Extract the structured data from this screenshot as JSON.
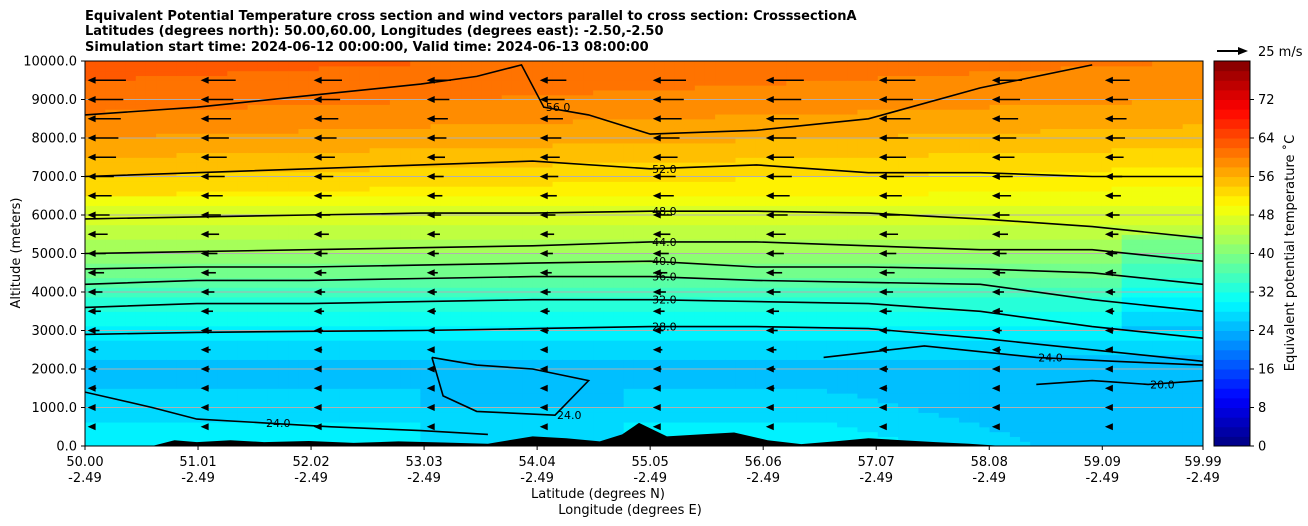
{
  "titles": [
    "Equivalent Potential Temperature cross section and wind vectors parallel to cross section: CrosssectionA",
    "Latitudes (degrees north): 50.00,60.00, Longitudes (degrees east): -2.50,-2.50",
    "Simulation start time: 2024-06-12 00:00:00, Valid time: 2024-06-13 08:00:00"
  ],
  "vector_key": "25 m/s",
  "chart_data": {
    "type": "heatmap",
    "title": "Equivalent Potential Temperature cross section and wind vectors parallel to cross section: CrosssectionA",
    "xlabel": "Latitude (degrees N)",
    "xlabel2": "Longitude (degrees E)",
    "ylabel": "Altitude (meters)",
    "colorbar_label": "Equivalent potential temperature $^\\circ$C",
    "colorbar_label_display": "Equivalent potential temperature ˚C",
    "ylim": [
      0,
      10000
    ],
    "xlim": [
      50.0,
      59.99
    ],
    "x_ticks": [
      {
        "lat": "50.00",
        "lon": "-2.49",
        "v": 50.0
      },
      {
        "lat": "51.01",
        "lon": "-2.49",
        "v": 51.01
      },
      {
        "lat": "52.02",
        "lon": "-2.49",
        "v": 52.02
      },
      {
        "lat": "53.03",
        "lon": "-2.49",
        "v": 53.03
      },
      {
        "lat": "54.04",
        "lon": "-2.49",
        "v": 54.04
      },
      {
        "lat": "55.05",
        "lon": "-2.49",
        "v": 55.05
      },
      {
        "lat": "56.06",
        "lon": "-2.49",
        "v": 56.06
      },
      {
        "lat": "57.07",
        "lon": "-2.49",
        "v": 57.07
      },
      {
        "lat": "58.08",
        "lon": "-2.49",
        "v": 58.08
      },
      {
        "lat": "59.09",
        "lon": "-2.49",
        "v": 59.09
      },
      {
        "lat": "59.99",
        "lon": "-2.49",
        "v": 59.99
      }
    ],
    "y_ticks": [
      "0.0",
      "1000.0",
      "2000.0",
      "3000.0",
      "4000.0",
      "5000.0",
      "6000.0",
      "7000.0",
      "8000.0",
      "9000.0",
      "10000.0"
    ],
    "y_tick_values": [
      0,
      1000,
      2000,
      3000,
      4000,
      5000,
      6000,
      7000,
      8000,
      9000,
      10000
    ],
    "colorbar_ticks": [
      "0",
      "8",
      "16",
      "24",
      "32",
      "40",
      "48",
      "56",
      "64",
      "72"
    ],
    "colorbar_range": [
      0,
      80
    ],
    "grid": true,
    "contour_levels": [
      20,
      24,
      28,
      32,
      36,
      40,
      44,
      48,
      52,
      56
    ],
    "contours": [
      {
        "label": "28.0",
        "level": 28,
        "points": [
          [
            50.0,
            2900
          ],
          [
            51.0,
            2950
          ],
          [
            52.0,
            2980
          ],
          [
            53.0,
            3000
          ],
          [
            54.0,
            3050
          ],
          [
            55.05,
            3100
          ],
          [
            56.0,
            3100
          ],
          [
            57.0,
            3050
          ],
          [
            58.0,
            2800
          ],
          [
            59.0,
            2500
          ],
          [
            59.99,
            2200
          ]
        ]
      },
      {
        "label": "32.0",
        "level": 32,
        "points": [
          [
            50.0,
            3600
          ],
          [
            51.0,
            3700
          ],
          [
            52.0,
            3700
          ],
          [
            53.0,
            3750
          ],
          [
            54.0,
            3800
          ],
          [
            55.05,
            3800
          ],
          [
            56.0,
            3750
          ],
          [
            57.0,
            3700
          ],
          [
            58.0,
            3500
          ],
          [
            59.0,
            3100
          ],
          [
            59.99,
            2800
          ]
        ]
      },
      {
        "label": "36.0",
        "level": 36,
        "points": [
          [
            50.0,
            4200
          ],
          [
            51.0,
            4300
          ],
          [
            52.0,
            4300
          ],
          [
            53.0,
            4350
          ],
          [
            54.0,
            4400
          ],
          [
            55.05,
            4400
          ],
          [
            56.0,
            4300
          ],
          [
            57.0,
            4250
          ],
          [
            58.0,
            4200
          ],
          [
            59.0,
            3800
          ],
          [
            59.99,
            3500
          ]
        ]
      },
      {
        "label": "40.0",
        "level": 40,
        "points": [
          [
            50.0,
            4600
          ],
          [
            51.0,
            4650
          ],
          [
            52.0,
            4650
          ],
          [
            53.0,
            4700
          ],
          [
            54.0,
            4750
          ],
          [
            55.05,
            4800
          ],
          [
            56.0,
            4650
          ],
          [
            57.0,
            4650
          ],
          [
            58.0,
            4600
          ],
          [
            59.0,
            4500
          ],
          [
            59.99,
            4200
          ]
        ]
      },
      {
        "label": "44.0",
        "level": 44,
        "points": [
          [
            50.0,
            5000
          ],
          [
            51.0,
            5050
          ],
          [
            52.0,
            5100
          ],
          [
            53.0,
            5150
          ],
          [
            54.0,
            5200
          ],
          [
            55.05,
            5300
          ],
          [
            56.0,
            5300
          ],
          [
            57.0,
            5200
          ],
          [
            58.0,
            5100
          ],
          [
            59.0,
            5100
          ],
          [
            59.99,
            4800
          ]
        ]
      },
      {
        "label": "48.0",
        "level": 48,
        "points": [
          [
            50.0,
            5900
          ],
          [
            51.0,
            5950
          ],
          [
            52.0,
            6000
          ],
          [
            53.0,
            6050
          ],
          [
            54.0,
            6050
          ],
          [
            55.05,
            6100
          ],
          [
            56.0,
            6100
          ],
          [
            57.0,
            6050
          ],
          [
            58.0,
            5900
          ],
          [
            59.0,
            5700
          ],
          [
            59.99,
            5400
          ]
        ]
      },
      {
        "label": "52.0",
        "level": 52,
        "points": [
          [
            50.0,
            7000
          ],
          [
            51.0,
            7100
          ],
          [
            52.0,
            7200
          ],
          [
            53.0,
            7300
          ],
          [
            54.0,
            7400
          ],
          [
            55.05,
            7200
          ],
          [
            56.0,
            7300
          ],
          [
            57.0,
            7100
          ],
          [
            58.0,
            7100
          ],
          [
            59.0,
            7000
          ],
          [
            59.99,
            7000
          ]
        ]
      },
      {
        "label": "56.0",
        "level": 56,
        "points": [
          [
            50.0,
            8600
          ],
          [
            51.0,
            8800
          ],
          [
            52.0,
            9100
          ],
          [
            53.0,
            9400
          ],
          [
            53.5,
            9600
          ],
          [
            53.9,
            9900
          ],
          [
            54.1,
            8800
          ],
          [
            54.5,
            8600
          ],
          [
            55.05,
            8100
          ],
          [
            56.0,
            8200
          ],
          [
            57.0,
            8500
          ],
          [
            58.0,
            9300
          ],
          [
            59.0,
            9900
          ]
        ]
      },
      {
        "label": "24.0",
        "level": 24,
        "points": [
          [
            53.1,
            2300
          ],
          [
            53.5,
            2100
          ],
          [
            54.0,
            2000
          ],
          [
            54.5,
            1700
          ],
          [
            54.2,
            800
          ],
          [
            53.5,
            900
          ],
          [
            53.2,
            1300
          ],
          [
            53.1,
            2300
          ]
        ]
      },
      {
        "label": "24.0",
        "level": 24,
        "points": [
          [
            56.6,
            2300
          ],
          [
            57.5,
            2600
          ],
          [
            58.5,
            2300
          ],
          [
            59.2,
            2200
          ],
          [
            59.99,
            2100
          ]
        ]
      },
      {
        "label": "20.0",
        "level": 20,
        "points": [
          [
            58.5,
            1600
          ],
          [
            59.0,
            1700
          ],
          [
            59.5,
            1600
          ],
          [
            59.99,
            1700
          ]
        ]
      },
      {
        "label": "24.0",
        "level": 24,
        "points": [
          [
            50.0,
            1400
          ],
          [
            50.6,
            1000
          ],
          [
            51.0,
            700
          ],
          [
            51.6,
            600
          ],
          [
            52.2,
            500
          ],
          [
            53.0,
            400
          ],
          [
            53.6,
            300
          ]
        ]
      }
    ],
    "series": [
      {
        "name": "Equivalent potential temperature ˚C",
        "profile_heights": [
          0,
          1000,
          2000,
          3000,
          4000,
          5000,
          6000,
          7000,
          8000,
          9000,
          10000
        ],
        "profile_values": [
          30,
          27,
          25,
          29,
          35,
          42,
          47,
          51,
          55,
          58,
          60
        ]
      }
    ],
    "wind_vectors": "westward (negative, toward lower latitude) parallel component; stronger aloft"
  }
}
